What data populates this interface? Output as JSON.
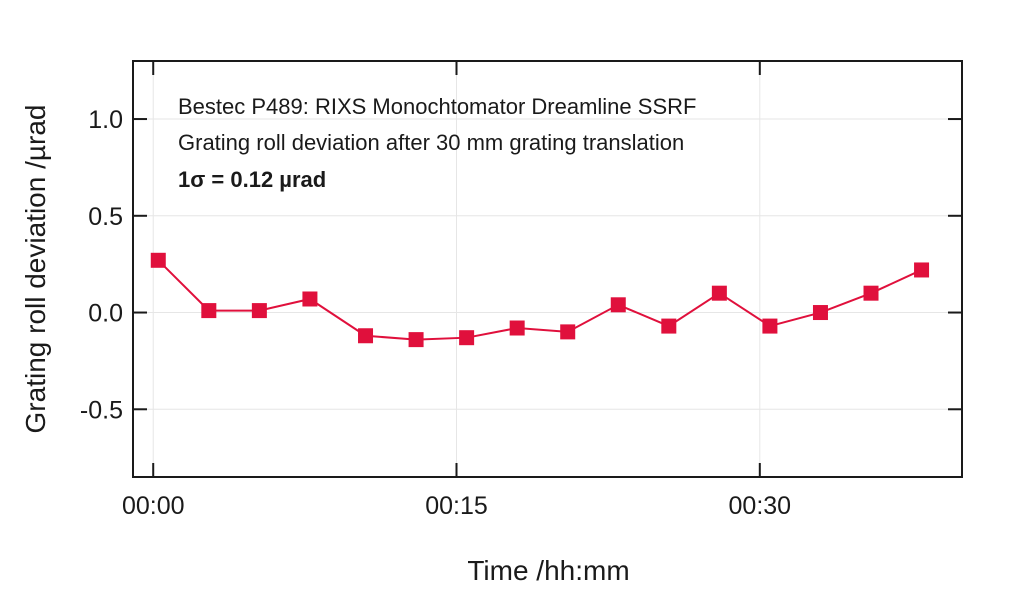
{
  "chart_data": {
    "type": "line",
    "xlabel": "Time /hh:mm",
    "ylabel": "Grating roll deviation /µrad",
    "xlim": [
      -1,
      40
    ],
    "ylim": [
      -0.85,
      1.3
    ],
    "x_ticks": [
      {
        "value": 0,
        "label": "00:00"
      },
      {
        "value": 15,
        "label": "00:15"
      },
      {
        "value": 30,
        "label": "00:30"
      }
    ],
    "y_ticks": [
      {
        "value": 1.0,
        "label": "1.0"
      },
      {
        "value": 0.5,
        "label": "0.5"
      },
      {
        "value": 0.0,
        "label": "0.0"
      },
      {
        "value": -0.5,
        "label": "-0.5"
      }
    ],
    "grid": true,
    "annotations": [
      "Bestec P489: RIXS Monochtomator Dreamline SSRF",
      "Grating roll deviation after 30 mm grating translation",
      "1σ = 0.12 µrad"
    ],
    "series_color": "#e0103c",
    "series": [
      {
        "x": [
          0.25,
          2.75,
          5.25,
          7.75,
          10.5,
          13.0,
          15.5,
          18.0,
          20.5,
          23.0,
          25.5,
          28.0,
          30.5,
          33.0,
          35.5,
          38.0
        ],
        "y": [
          0.27,
          0.01,
          0.01,
          0.07,
          -0.12,
          -0.14,
          -0.13,
          -0.08,
          -0.1,
          0.04,
          -0.07,
          0.1,
          -0.07,
          0.0,
          0.1,
          0.22
        ]
      }
    ]
  }
}
